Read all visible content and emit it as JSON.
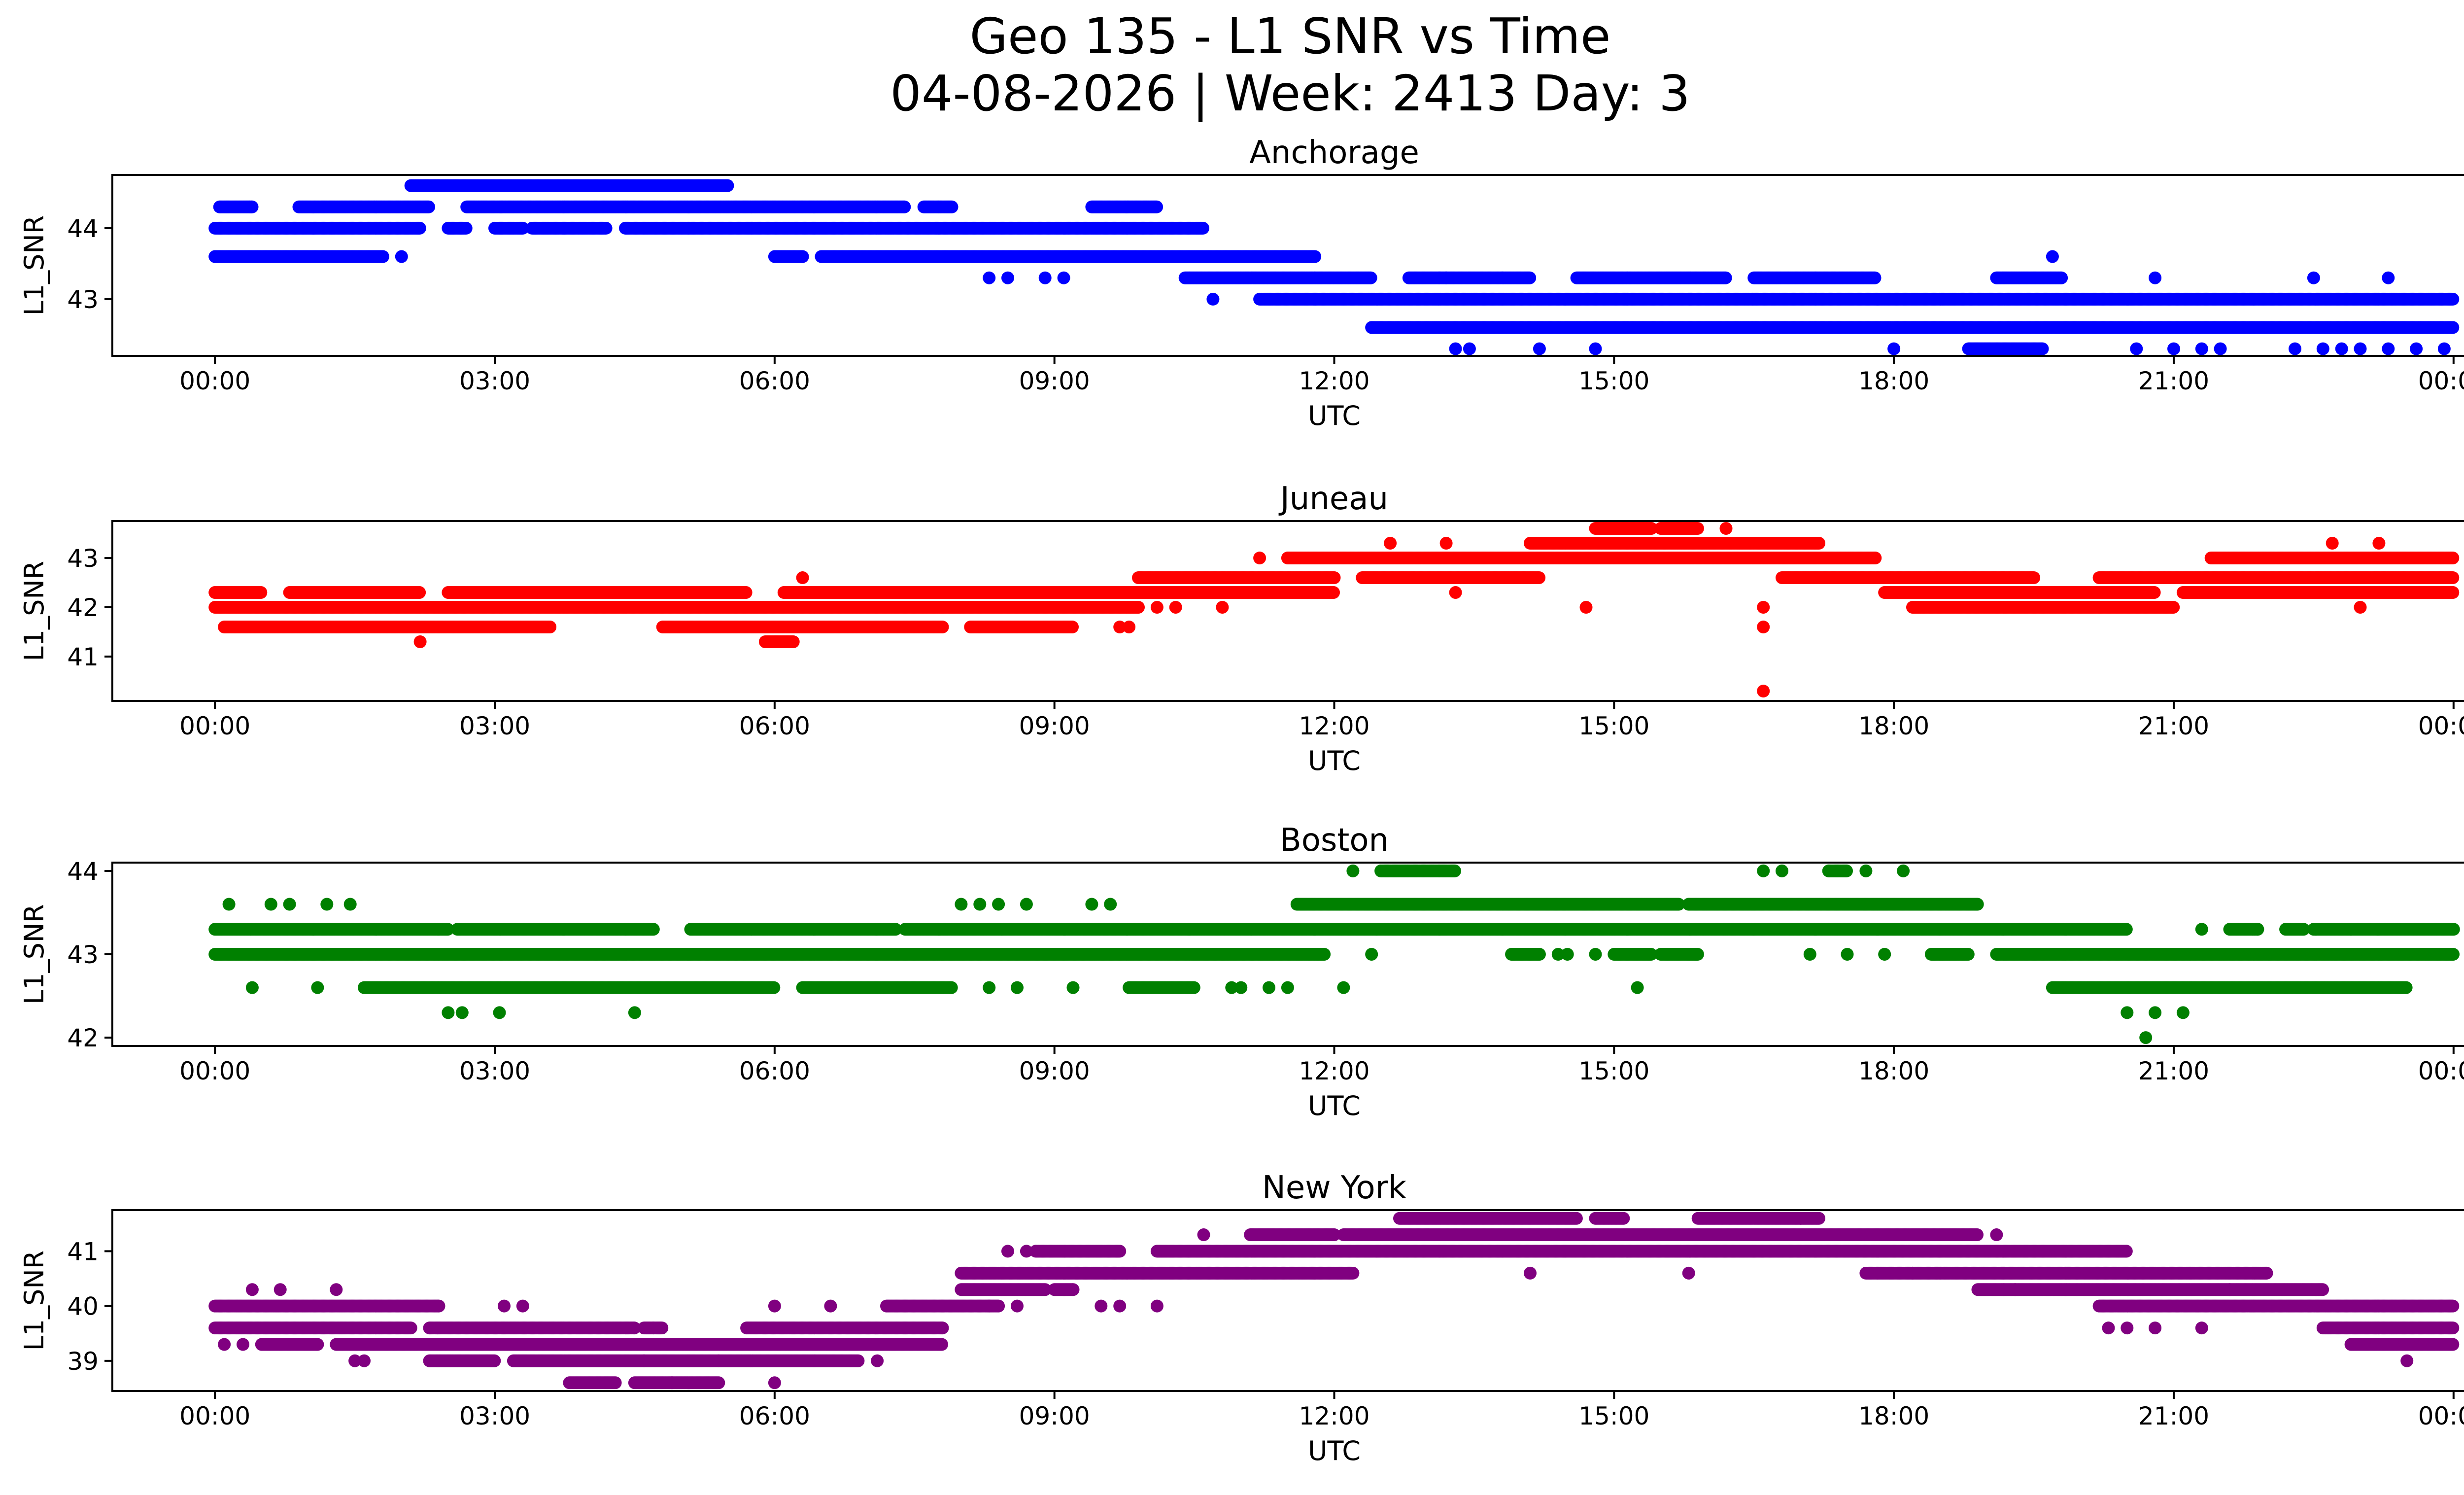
{
  "figure": {
    "title_line1": "Geo 135 - L1 SNR vs Time",
    "title_line2": "04-08-2026 | Week: 2413 Day: 3"
  },
  "chart_data": [
    {
      "type": "scatter",
      "title": "Anchorage",
      "xlabel": "UTC",
      "ylabel": "L1_SNR",
      "color": "#0000ff",
      "xlim": [
        -1.1,
        25.1
      ],
      "ylim": [
        42.2,
        44.75
      ],
      "x_ticks": [
        0,
        3,
        6,
        9,
        12,
        15,
        18,
        21,
        24
      ],
      "x_tick_labels": [
        "00:00",
        "03:00",
        "06:00",
        "09:00",
        "12:00",
        "15:00",
        "18:00",
        "21:00",
        "00:00"
      ],
      "y_ticks": [
        43,
        44
      ],
      "y_tick_labels": [
        "43",
        "44"
      ],
      "bands": [
        {
          "y": 44.6,
          "ranges": [
            [
              2.1,
              5.5
            ]
          ]
        },
        {
          "y": 44.3,
          "ranges": [
            [
              0.05,
              0.4
            ],
            [
              0.9,
              2.3
            ],
            [
              2.7,
              7.4
            ],
            [
              7.6,
              7.9
            ],
            [
              9.4,
              10.1
            ]
          ]
        },
        {
          "y": 44.0,
          "ranges": [
            [
              0.0,
              2.2
            ],
            [
              2.5,
              2.7
            ],
            [
              3.0,
              3.3
            ],
            [
              3.4,
              4.2
            ],
            [
              4.4,
              10.6
            ]
          ]
        },
        {
          "y": 43.6,
          "ranges": [
            [
              0.0,
              1.8
            ],
            [
              6.0,
              6.3
            ],
            [
              6.5,
              11.8
            ]
          ]
        },
        {
          "y": 43.3,
          "ranges": [
            [
              10.4,
              12.4
            ],
            [
              12.8,
              14.1
            ],
            [
              14.6,
              16.2
            ],
            [
              16.5,
              17.8
            ],
            [
              19.1,
              19.8
            ]
          ]
        },
        {
          "y": 43.0,
          "ranges": [
            [
              11.2,
              24.0
            ]
          ]
        },
        {
          "y": 42.6,
          "ranges": [
            [
              12.4,
              24.0
            ]
          ]
        },
        {
          "y": 42.3,
          "ranges": [
            [
              18.8,
              19.6
            ]
          ]
        }
      ],
      "points": [
        [
          2.0,
          43.6
        ],
        [
          8.3,
          43.3
        ],
        [
          8.5,
          43.3
        ],
        [
          8.9,
          43.3
        ],
        [
          9.1,
          43.3
        ],
        [
          9.2,
          43.6
        ],
        [
          10.7,
          43.0
        ],
        [
          13.2,
          43.3
        ],
        [
          13.3,
          42.3
        ],
        [
          13.45,
          42.3
        ],
        [
          14.2,
          42.3
        ],
        [
          14.8,
          42.3
        ],
        [
          18.0,
          42.3
        ],
        [
          19.7,
          43.6
        ],
        [
          20.6,
          42.3
        ],
        [
          21.0,
          42.3
        ],
        [
          21.3,
          42.3
        ],
        [
          21.5,
          42.3
        ],
        [
          22.3,
          42.3
        ],
        [
          22.6,
          42.3
        ],
        [
          22.8,
          42.3
        ],
        [
          23.0,
          42.3
        ],
        [
          23.3,
          42.3
        ],
        [
          23.6,
          42.3
        ],
        [
          23.9,
          42.3
        ],
        [
          22.5,
          43.3
        ],
        [
          23.3,
          43.3
        ],
        [
          20.8,
          43.3
        ]
      ]
    },
    {
      "type": "scatter",
      "title": "Juneau",
      "xlabel": "UTC",
      "ylabel": "L1_SNR",
      "color": "#ff0000",
      "xlim": [
        -1.1,
        25.1
      ],
      "ylim": [
        40.1,
        43.75
      ],
      "x_ticks": [
        0,
        3,
        6,
        9,
        12,
        15,
        18,
        21,
        24
      ],
      "x_tick_labels": [
        "00:00",
        "03:00",
        "06:00",
        "09:00",
        "12:00",
        "15:00",
        "18:00",
        "21:00",
        "00:00"
      ],
      "y_ticks": [
        41,
        42,
        43
      ],
      "y_tick_labels": [
        "41",
        "42",
        "43"
      ],
      "bands": [
        {
          "y": 43.6,
          "ranges": [
            [
              14.8,
              15.4
            ],
            [
              15.5,
              15.9
            ]
          ]
        },
        {
          "y": 43.3,
          "ranges": [
            [
              14.1,
              17.2
            ]
          ]
        },
        {
          "y": 43.0,
          "ranges": [
            [
              11.5,
              17.8
            ],
            [
              21.4,
              24.0
            ]
          ]
        },
        {
          "y": 42.6,
          "ranges": [
            [
              9.9,
              12.0
            ],
            [
              12.3,
              14.2
            ],
            [
              16.8,
              19.5
            ],
            [
              20.2,
              24.0
            ]
          ]
        },
        {
          "y": 42.3,
          "ranges": [
            [
              0.0,
              0.5
            ],
            [
              0.8,
              2.2
            ],
            [
              2.5,
              5.7
            ],
            [
              6.1,
              12.0
            ],
            [
              17.9,
              20.8
            ],
            [
              21.1,
              24.0
            ]
          ]
        },
        {
          "y": 42.0,
          "ranges": [
            [
              0.0,
              9.9
            ],
            [
              18.2,
              21.0
            ]
          ]
        },
        {
          "y": 41.6,
          "ranges": [
            [
              0.1,
              3.6
            ],
            [
              4.8,
              7.8
            ],
            [
              8.1,
              9.2
            ]
          ]
        },
        {
          "y": 41.3,
          "ranges": [
            [
              5.9,
              6.2
            ]
          ]
        }
      ],
      "points": [
        [
          2.2,
          41.3
        ],
        [
          6.3,
          42.6
        ],
        [
          9.7,
          41.6
        ],
        [
          9.8,
          41.6
        ],
        [
          10.1,
          42.0
        ],
        [
          10.3,
          42.0
        ],
        [
          10.8,
          42.0
        ],
        [
          11.2,
          43.0
        ],
        [
          12.6,
          43.3
        ],
        [
          13.2,
          43.3
        ],
        [
          13.3,
          42.3
        ],
        [
          14.7,
          42.0
        ],
        [
          16.2,
          43.6
        ],
        [
          16.6,
          42.0
        ],
        [
          16.6,
          41.6
        ],
        [
          16.6,
          40.3
        ],
        [
          20.9,
          42.6
        ],
        [
          22.7,
          43.3
        ],
        [
          23.2,
          43.3
        ],
        [
          23.0,
          42.0
        ]
      ]
    },
    {
      "type": "scatter",
      "title": "Boston",
      "xlabel": "UTC",
      "ylabel": "L1_SNR",
      "color": "#008000",
      "xlim": [
        -1.1,
        25.1
      ],
      "ylim": [
        41.9,
        44.1
      ],
      "x_ticks": [
        0,
        3,
        6,
        9,
        12,
        15,
        18,
        21,
        24
      ],
      "x_tick_labels": [
        "00:00",
        "03:00",
        "06:00",
        "09:00",
        "12:00",
        "15:00",
        "18:00",
        "21:00",
        "00:00"
      ],
      "y_ticks": [
        42,
        43,
        44
      ],
      "y_tick_labels": [
        "42",
        "43",
        "44"
      ],
      "bands": [
        {
          "y": 44.0,
          "ranges": [
            [
              12.5,
              13.3
            ],
            [
              17.3,
              17.5
            ]
          ]
        },
        {
          "y": 43.6,
          "ranges": [
            [
              11.6,
              15.7
            ],
            [
              15.8,
              18.9
            ]
          ]
        },
        {
          "y": 43.3,
          "ranges": [
            [
              0.0,
              2.5
            ],
            [
              2.6,
              4.7
            ],
            [
              5.1,
              7.3
            ],
            [
              7.4,
              20.5
            ],
            [
              21.6,
              21.9
            ],
            [
              22.2,
              22.4
            ],
            [
              22.5,
              24.0
            ]
          ]
        },
        {
          "y": 43.0,
          "ranges": [
            [
              0.0,
              11.9
            ],
            [
              13.9,
              14.2
            ],
            [
              15.0,
              15.4
            ],
            [
              15.5,
              15.9
            ],
            [
              18.4,
              18.8
            ],
            [
              19.1,
              24.0
            ]
          ]
        },
        {
          "y": 42.6,
          "ranges": [
            [
              1.6,
              6.0
            ],
            [
              6.3,
              7.9
            ],
            [
              9.8,
              10.5
            ],
            [
              19.7,
              23.5
            ]
          ]
        }
      ],
      "points": [
        [
          0.15,
          43.6
        ],
        [
          0.4,
          42.6
        ],
        [
          0.6,
          43.6
        ],
        [
          0.8,
          43.6
        ],
        [
          1.1,
          42.6
        ],
        [
          1.2,
          43.6
        ],
        [
          1.45,
          43.6
        ],
        [
          2.5,
          42.3
        ],
        [
          2.65,
          42.3
        ],
        [
          3.05,
          42.3
        ],
        [
          4.5,
          42.3
        ],
        [
          8.0,
          43.6
        ],
        [
          8.2,
          43.6
        ],
        [
          8.4,
          43.6
        ],
        [
          8.7,
          43.6
        ],
        [
          8.3,
          42.6
        ],
        [
          8.6,
          42.6
        ],
        [
          9.2,
          42.6
        ],
        [
          9.4,
          43.6
        ],
        [
          9.6,
          43.6
        ],
        [
          10.9,
          42.6
        ],
        [
          11.0,
          42.6
        ],
        [
          11.3,
          42.6
        ],
        [
          11.5,
          42.6
        ],
        [
          12.1,
          42.6
        ],
        [
          12.2,
          44.0
        ],
        [
          12.4,
          43.0
        ],
        [
          14.4,
          43.0
        ],
        [
          14.5,
          43.0
        ],
        [
          14.8,
          43.0
        ],
        [
          15.25,
          42.6
        ],
        [
          16.6,
          44.0
        ],
        [
          16.8,
          44.0
        ],
        [
          17.1,
          43.0
        ],
        [
          17.5,
          43.0
        ],
        [
          17.7,
          44.0
        ],
        [
          17.9,
          43.0
        ],
        [
          18.1,
          44.0
        ],
        [
          20.5,
          42.3
        ],
        [
          20.7,
          42.0
        ],
        [
          20.8,
          42.3
        ],
        [
          21.1,
          42.3
        ],
        [
          21.3,
          43.3
        ],
        [
          21.9,
          43.3
        ],
        [
          22.9,
          43.3
        ]
      ]
    },
    {
      "type": "scatter",
      "title": "New York",
      "xlabel": "UTC",
      "ylabel": "L1_SNR",
      "color": "#800080",
      "xlim": [
        -1.1,
        25.1
      ],
      "ylim": [
        38.45,
        41.75
      ],
      "x_ticks": [
        0,
        3,
        6,
        9,
        12,
        15,
        18,
        21,
        24
      ],
      "x_tick_labels": [
        "00:00",
        "03:00",
        "06:00",
        "09:00",
        "12:00",
        "15:00",
        "18:00",
        "21:00",
        "00:00"
      ],
      "y_ticks": [
        39,
        40,
        41
      ],
      "y_tick_labels": [
        "39",
        "40",
        "41"
      ],
      "bands": [
        {
          "y": 41.6,
          "ranges": [
            [
              12.7,
              14.6
            ],
            [
              14.8,
              15.1
            ],
            [
              15.9,
              17.2
            ]
          ]
        },
        {
          "y": 41.3,
          "ranges": [
            [
              11.1,
              12.0
            ],
            [
              12.1,
              18.9
            ]
          ]
        },
        {
          "y": 41.0,
          "ranges": [
            [
              8.8,
              9.7
            ],
            [
              10.1,
              20.5
            ]
          ]
        },
        {
          "y": 40.6,
          "ranges": [
            [
              8.0,
              12.2
            ],
            [
              17.7,
              22.0
            ]
          ]
        },
        {
          "y": 40.3,
          "ranges": [
            [
              8.0,
              8.9
            ],
            [
              9.0,
              9.2
            ],
            [
              18.9,
              22.6
            ]
          ]
        },
        {
          "y": 40.0,
          "ranges": [
            [
              0.0,
              2.4
            ],
            [
              7.2,
              8.4
            ],
            [
              20.2,
              24.0
            ]
          ]
        },
        {
          "y": 39.6,
          "ranges": [
            [
              0.0,
              2.1
            ],
            [
              2.3,
              4.5
            ],
            [
              4.6,
              4.8
            ],
            [
              5.7,
              7.8
            ],
            [
              22.6,
              24.0
            ]
          ]
        },
        {
          "y": 39.3,
          "ranges": [
            [
              0.5,
              1.1
            ],
            [
              1.3,
              7.8
            ],
            [
              22.9,
              24.0
            ]
          ]
        },
        {
          "y": 39.0,
          "ranges": [
            [
              2.3,
              3.0
            ],
            [
              3.2,
              6.9
            ]
          ]
        },
        {
          "y": 38.6,
          "ranges": [
            [
              3.8,
              4.3
            ],
            [
              4.5,
              5.4
            ]
          ]
        }
      ],
      "points": [
        [
          0.1,
          39.3
        ],
        [
          0.3,
          39.3
        ],
        [
          0.4,
          40.3
        ],
        [
          0.7,
          40.3
        ],
        [
          1.3,
          40.3
        ],
        [
          1.5,
          39.0
        ],
        [
          1.6,
          39.0
        ],
        [
          3.1,
          40.0
        ],
        [
          3.3,
          40.0
        ],
        [
          4.7,
          39.6
        ],
        [
          4.6,
          39.0
        ],
        [
          4.9,
          38.6
        ],
        [
          5.4,
          39.0
        ],
        [
          6.0,
          38.6
        ],
        [
          6.6,
          40.0
        ],
        [
          6.0,
          40.0
        ],
        [
          7.1,
          39.0
        ],
        [
          8.3,
          40.0
        ],
        [
          8.5,
          41.0
        ],
        [
          8.6,
          40.0
        ],
        [
          8.7,
          41.0
        ],
        [
          9.2,
          40.3
        ],
        [
          9.5,
          40.0
        ],
        [
          9.7,
          40.0
        ],
        [
          10.1,
          40.0
        ],
        [
          10.6,
          41.3
        ],
        [
          13.0,
          41.3
        ],
        [
          14.1,
          40.6
        ],
        [
          15.8,
          40.6
        ],
        [
          17.0,
          41.6
        ],
        [
          18.2,
          40.6
        ],
        [
          19.1,
          41.3
        ],
        [
          19.3,
          40.3
        ],
        [
          20.3,
          39.6
        ],
        [
          20.5,
          39.6
        ],
        [
          20.8,
          39.6
        ],
        [
          21.3,
          39.6
        ],
        [
          21.6,
          40.3
        ],
        [
          23.2,
          39.3
        ],
        [
          23.5,
          39.0
        ]
      ]
    }
  ]
}
